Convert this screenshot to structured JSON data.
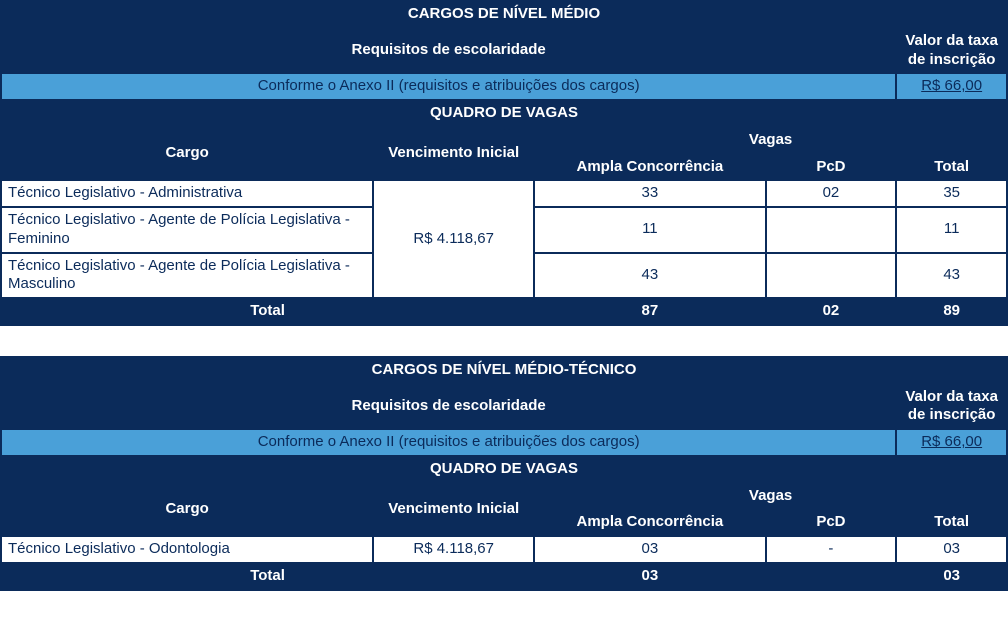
{
  "colors": {
    "border": "#0b2b5a",
    "dark_bg": "#0b2b5a",
    "light_bg": "#4aa0d8",
    "text_light": "#ffffff",
    "text_dark": "#0b2b5a"
  },
  "col_widths_pct": {
    "cargo": 37,
    "vencimento": 16,
    "ampla": 23,
    "pcd": 13,
    "total": 11
  },
  "labels": {
    "req_escolaridade": "Requisitos de escolaridade",
    "valor_taxa": "Valor da taxa de inscrição",
    "anexo": "Conforme o Anexo II (requisitos e atribuições dos cargos)",
    "quadro_vagas": "QUADRO DE VAGAS",
    "cargo": "Cargo",
    "vencimento": "Vencimento Inicial",
    "vagas": "Vagas",
    "ampla": "Ampla Concorrência",
    "pcd": "PcD",
    "total_col": "Total",
    "total_row": "Total"
  },
  "tables": [
    {
      "title": "CARGOS DE NÍVEL MÉDIO",
      "fee": "R$ 66,00",
      "vencimento": "R$ 4.118,67",
      "rows": [
        {
          "cargo": "Técnico Legislativo - Administrativa",
          "ampla": "33",
          "pcd": "02",
          "total": "35"
        },
        {
          "cargo": "Técnico Legislativo - Agente de Polícia Legislativa - Feminino",
          "ampla": "11",
          "pcd": "",
          "total": "11"
        },
        {
          "cargo": "Técnico Legislativo - Agente de Polícia Legislativa - Masculino",
          "ampla": "43",
          "pcd": "",
          "total": "43"
        }
      ],
      "totals": {
        "ampla": "87",
        "pcd": "02",
        "total": "89"
      }
    },
    {
      "title": "CARGOS DE NÍVEL MÉDIO-TÉCNICO",
      "fee": "R$ 66,00",
      "vencimento": "R$ 4.118,67",
      "rows": [
        {
          "cargo": "Técnico Legislativo - Odontologia",
          "ampla": "03",
          "pcd": "-",
          "total": "03"
        }
      ],
      "totals": {
        "ampla": "03",
        "pcd": "",
        "total": "03"
      }
    }
  ]
}
